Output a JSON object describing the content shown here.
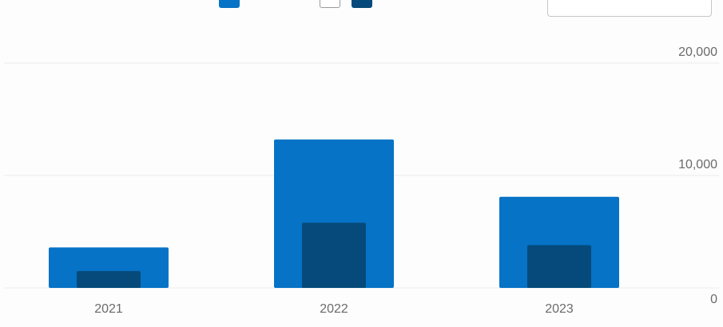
{
  "chart_data": {
    "type": "bar",
    "categories": [
      "2021",
      "2022",
      "2023"
    ],
    "series": [
      {
        "values": [
          3600,
          13200,
          8100
        ]
      },
      {
        "values": [
          1500,
          5800,
          3800
        ]
      }
    ],
    "ylim": [
      0,
      20000
    ],
    "yticks": [
      "0",
      "10,000",
      "20,000"
    ],
    "grid": true,
    "colors": {
      "series_1": "#0673c6",
      "series_2": "#054a7a",
      "grid": "#ececec",
      "tick_text": "#6b6b6b"
    }
  }
}
